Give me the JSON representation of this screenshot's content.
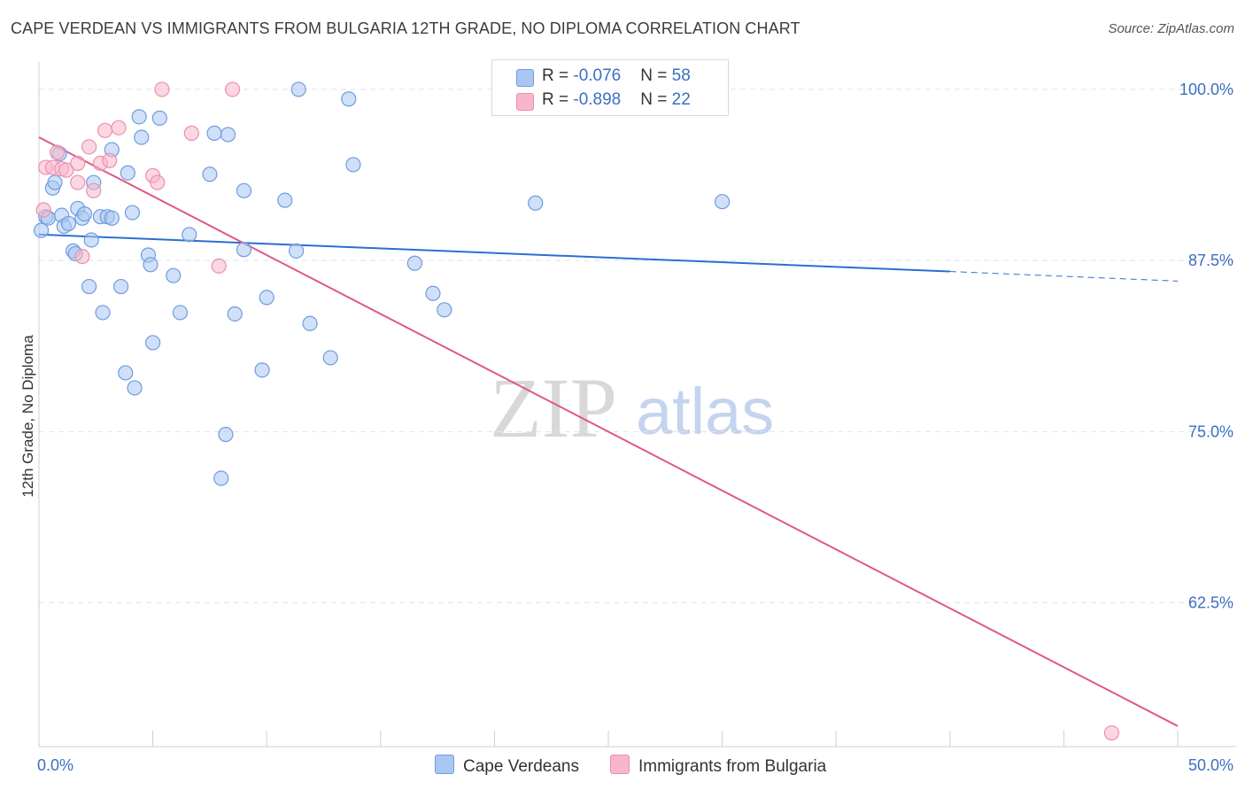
{
  "header": {
    "title": "CAPE VERDEAN VS IMMIGRANTS FROM BULGARIA 12TH GRADE, NO DIPLOMA CORRELATION CHART",
    "source": "Source: ZipAtlas.com"
  },
  "watermark": {
    "zip": "ZIP",
    "atlas": "atlas"
  },
  "legend": {
    "rows": [
      {
        "r_label": "R = ",
        "r_value": "-0.076",
        "n_label": "N = ",
        "n_value": "58",
        "color": "#a9c7f2"
      },
      {
        "r_label": "R = ",
        "r_value": "-0.898",
        "n_label": "N = ",
        "n_value": "22",
        "color": "#f7b6cb"
      }
    ]
  },
  "bottom_legend": {
    "items": [
      {
        "label": "Cape Verdeans",
        "color": "#a9c7f2"
      },
      {
        "label": "Immigrants from Bulgaria",
        "color": "#f7b6cb"
      }
    ]
  },
  "chart_data": {
    "type": "scatter",
    "title": "CAPE VERDEAN VS IMMIGRANTS FROM BULGARIA 12TH GRADE, NO DIPLOMA CORRELATION CHART",
    "xlabel": "",
    "ylabel": "12th Grade, No Diploma",
    "xlim": [
      0,
      50
    ],
    "ylim": [
      52,
      102
    ],
    "x_tick_labels": [
      {
        "value": 0,
        "label": "0.0%"
      },
      {
        "value": 50,
        "label": "50.0%"
      }
    ],
    "y_tick_labels": [
      {
        "value": 100,
        "label": "100.0%"
      },
      {
        "value": 87.5,
        "label": "87.5%"
      },
      {
        "value": 75,
        "label": "75.0%"
      },
      {
        "value": 62.5,
        "label": "62.5%"
      }
    ],
    "y_gridlines": [
      100,
      87.5,
      75,
      62.5
    ],
    "x_minor_ticks": [
      0,
      5,
      10,
      15,
      20,
      25,
      30,
      35,
      40,
      45,
      50
    ],
    "series": [
      {
        "name": "Cape Verdeans",
        "color": "#a9c7f2",
        "edge": "#6f9be0",
        "line_color": "#2a6fcf",
        "trend": {
          "x0": 0,
          "y0": 89.4,
          "x1": 40,
          "y1": 86.7,
          "dashed_to_x": 50,
          "dashed_to_y": 86.0
        },
        "points": [
          [
            0.1,
            89.7
          ],
          [
            0.3,
            90.7
          ],
          [
            0.4,
            90.6
          ],
          [
            0.6,
            92.8
          ],
          [
            0.7,
            93.2
          ],
          [
            0.9,
            95.3
          ],
          [
            1.0,
            90.8
          ],
          [
            1.1,
            90.0
          ],
          [
            1.3,
            90.2
          ],
          [
            1.5,
            88.2
          ],
          [
            1.6,
            88.0
          ],
          [
            1.7,
            91.3
          ],
          [
            1.9,
            90.6
          ],
          [
            2.0,
            90.9
          ],
          [
            2.2,
            85.6
          ],
          [
            2.3,
            89.0
          ],
          [
            2.4,
            93.2
          ],
          [
            2.7,
            90.7
          ],
          [
            2.8,
            83.7
          ],
          [
            3.0,
            90.7
          ],
          [
            3.2,
            95.6
          ],
          [
            3.2,
            90.6
          ],
          [
            3.6,
            85.6
          ],
          [
            3.8,
            79.3
          ],
          [
            3.9,
            93.9
          ],
          [
            4.1,
            91.0
          ],
          [
            4.2,
            78.2
          ],
          [
            4.4,
            98.0
          ],
          [
            4.5,
            96.5
          ],
          [
            4.8,
            87.9
          ],
          [
            4.9,
            87.2
          ],
          [
            5.0,
            81.5
          ],
          [
            5.3,
            97.9
          ],
          [
            5.9,
            86.4
          ],
          [
            6.2,
            83.7
          ],
          [
            6.6,
            89.4
          ],
          [
            7.5,
            93.8
          ],
          [
            7.7,
            96.8
          ],
          [
            8.0,
            71.6
          ],
          [
            8.2,
            74.8
          ],
          [
            8.3,
            96.7
          ],
          [
            8.6,
            83.6
          ],
          [
            9.0,
            92.6
          ],
          [
            9.0,
            88.3
          ],
          [
            9.8,
            79.5
          ],
          [
            10.0,
            84.8
          ],
          [
            10.8,
            91.9
          ],
          [
            11.3,
            88.2
          ],
          [
            11.4,
            100.0
          ],
          [
            11.9,
            82.9
          ],
          [
            12.8,
            80.4
          ],
          [
            13.6,
            99.3
          ],
          [
            13.8,
            94.5
          ],
          [
            16.5,
            87.3
          ],
          [
            17.3,
            85.1
          ],
          [
            17.8,
            83.9
          ],
          [
            21.8,
            91.7
          ],
          [
            30.0,
            91.8
          ]
        ]
      },
      {
        "name": "Immigrants from Bulgaria",
        "color": "#f7b6cb",
        "edge": "#ec8fad",
        "line_color": "#e0578a",
        "trend": {
          "x0": 0,
          "y0": 96.5,
          "x1": 50,
          "y1": 53.5
        },
        "points": [
          [
            0.2,
            91.2
          ],
          [
            0.3,
            94.3
          ],
          [
            0.6,
            94.3
          ],
          [
            0.8,
            95.4
          ],
          [
            1.0,
            94.2
          ],
          [
            1.2,
            94.1
          ],
          [
            1.7,
            93.2
          ],
          [
            1.7,
            94.6
          ],
          [
            1.9,
            87.8
          ],
          [
            2.2,
            95.8
          ],
          [
            2.4,
            92.6
          ],
          [
            2.7,
            94.6
          ],
          [
            2.9,
            97.0
          ],
          [
            3.1,
            94.8
          ],
          [
            3.5,
            97.2
          ],
          [
            5.0,
            93.7
          ],
          [
            5.2,
            93.2
          ],
          [
            5.4,
            100.0
          ],
          [
            6.7,
            96.8
          ],
          [
            7.9,
            87.1
          ],
          [
            8.5,
            100.0
          ],
          [
            47.1,
            53.0
          ]
        ]
      }
    ]
  }
}
